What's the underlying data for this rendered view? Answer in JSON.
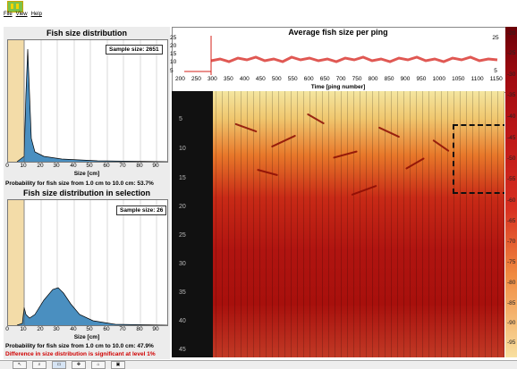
{
  "menu": {
    "file": "File",
    "view": "View",
    "help": "Help"
  },
  "panel1": {
    "title": "Fish size distribution",
    "sample": "Sample size: 2651",
    "xlabel": "Size [cm]",
    "prob": "Probability for fish size from 1.0 cm to 10.0 cm: 53.7%"
  },
  "panel2": {
    "title": "Fish size distribution in selection",
    "sample": "Sample size: 26",
    "xlabel": "Size [cm]",
    "prob": "Probability for fish size from 1.0 cm to 10.0 cm: 47.9%",
    "diff": "Difference in size distribution is significant at level 1%"
  },
  "size_ticks": [
    "0",
    "10",
    "20",
    "30",
    "40",
    "50",
    "60",
    "70",
    "80",
    "90"
  ],
  "avg": {
    "title": "Average fish size per ping",
    "xlabel": "Time [ping number]",
    "xticks": [
      "200",
      "250",
      "300",
      "350",
      "400",
      "450",
      "500",
      "550",
      "600",
      "650",
      "700",
      "750",
      "800",
      "850",
      "900",
      "950",
      "1000",
      "1050",
      "1100",
      "1150"
    ],
    "yticks_left": [
      "25",
      "20",
      "15",
      "10",
      "5"
    ],
    "yticks_right": [
      "25",
      "5"
    ]
  },
  "echogram": {
    "depth_ticks": [
      "5",
      "10",
      "15",
      "20",
      "25",
      "30",
      "35",
      "40",
      "45"
    ]
  },
  "colorbar": {
    "ticks": [
      "-20",
      "-25",
      "-30",
      "-35",
      "-40",
      "-45",
      "-50",
      "-55",
      "-60",
      "-65",
      "-70",
      "-75",
      "-80",
      "-85",
      "-90",
      "-95"
    ]
  },
  "colors": {
    "bar": "#4a8fc0",
    "highlight": "#f3dca8",
    "curve": "#d6201a"
  }
}
